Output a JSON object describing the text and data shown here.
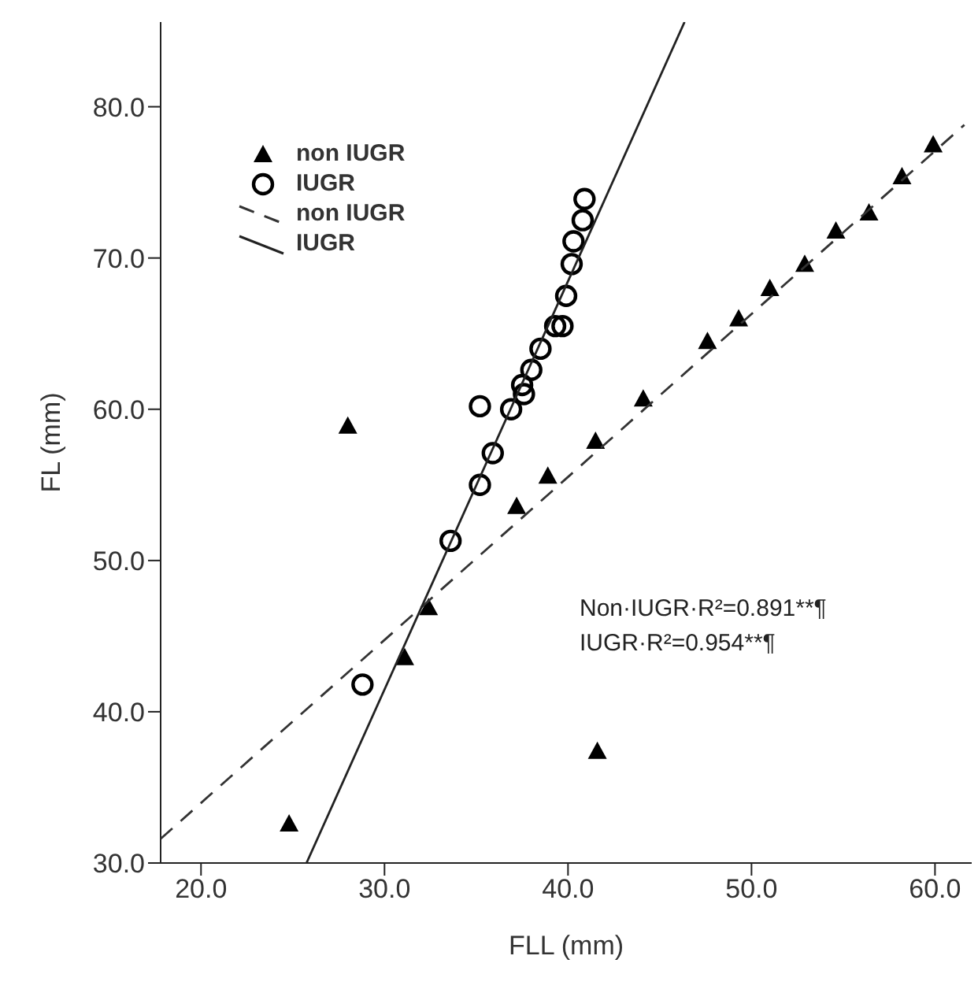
{
  "chart_data": {
    "type": "scatter",
    "xlabel": "FLL (mm)",
    "ylabel": "FL (mm)",
    "xlim": [
      17.8,
      62.0
    ],
    "ylim": [
      30,
      85.6
    ],
    "xticks": [
      {
        "value": 20,
        "label": "20.0"
      },
      {
        "value": 30,
        "label": "30.0"
      },
      {
        "value": 40,
        "label": "40.0"
      },
      {
        "value": 50,
        "label": "50.0"
      },
      {
        "value": 60,
        "label": "60.0"
      }
    ],
    "yticks": [
      {
        "value": 30,
        "label": "30.0"
      },
      {
        "value": 40,
        "label": "40.0"
      },
      {
        "value": 50,
        "label": "50.0"
      },
      {
        "value": 60,
        "label": "60.0"
      },
      {
        "value": 70,
        "label": "70.0"
      },
      {
        "value": 80,
        "label": "80.0"
      }
    ],
    "legend": "top left",
    "grid": false,
    "series": [
      {
        "name": "non IUGR",
        "marker": "triangle",
        "color": "#000000",
        "x": [
          28.0,
          24.8,
          32.4,
          31.1,
          41.6,
          37.2,
          38.9,
          41.5,
          44.1,
          47.6,
          49.3,
          51.0,
          52.9,
          54.6,
          56.4,
          58.2,
          59.9
        ],
        "values": [
          58.9,
          32.6,
          46.9,
          43.6,
          37.4,
          53.6,
          55.6,
          57.9,
          60.7,
          64.5,
          66.0,
          68.0,
          69.6,
          71.8,
          73.0,
          75.4,
          77.5
        ]
      },
      {
        "name": "IUGR",
        "marker": "circle",
        "color": "#000000",
        "x": [
          40.9,
          40.8,
          40.3,
          40.2,
          39.9,
          39.7,
          39.3,
          38.5,
          38.0,
          37.5,
          37.6,
          36.9,
          35.2,
          35.9,
          35.2,
          33.6,
          28.8
        ],
        "values": [
          73.9,
          72.5,
          71.1,
          69.6,
          67.5,
          65.5,
          65.5,
          64.0,
          62.6,
          61.6,
          61.0,
          60.0,
          60.2,
          57.1,
          55.0,
          51.3,
          41.8
        ]
      },
      {
        "name": "non IUGR",
        "type": "line",
        "line_style": "dashed",
        "marker": "none",
        "color": "#333333",
        "x": [
          17.8,
          61.6
        ],
        "values": [
          31.6,
          78.8
        ]
      },
      {
        "name": "IUGR",
        "type": "line",
        "line_style": "solid",
        "marker": "none",
        "color": "#222222",
        "x": [
          25.75,
          46.35
        ],
        "values": [
          30,
          85.6
        ]
      }
    ],
    "annotations": [
      "Non·IUGR·R²=0.891**¶",
      "IUGR·R²=0.954**¶"
    ]
  }
}
